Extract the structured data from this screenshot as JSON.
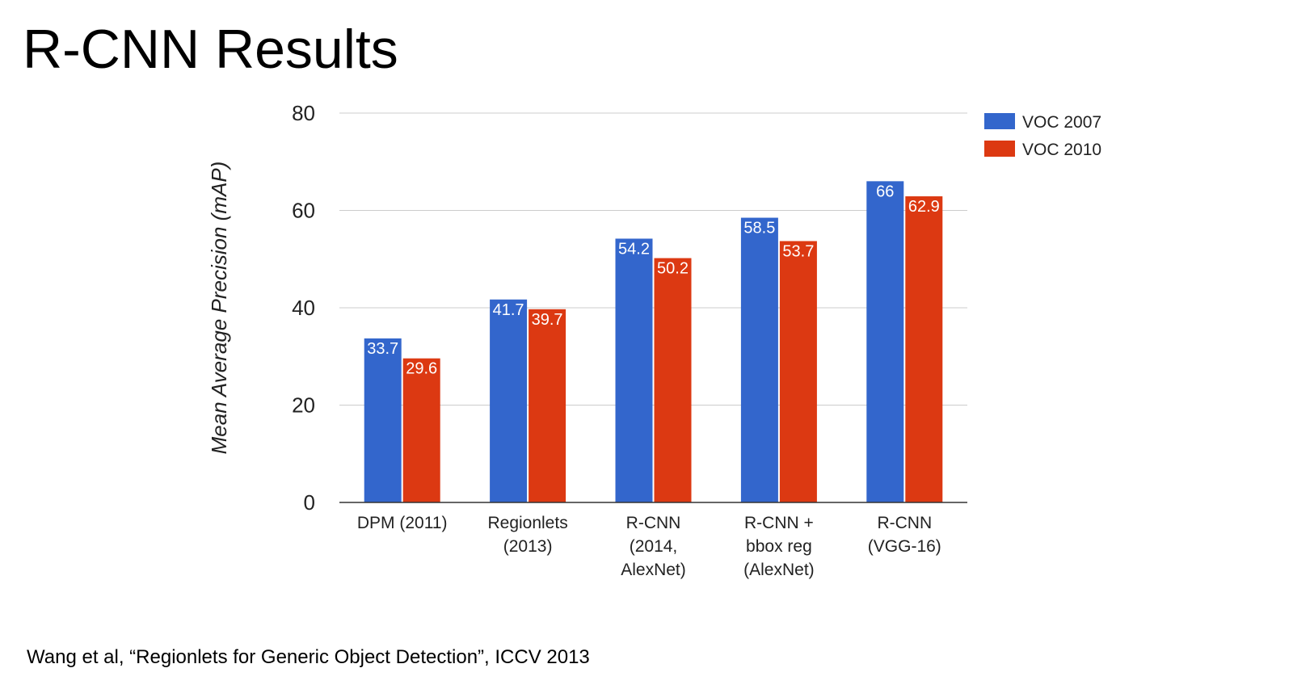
{
  "slide": {
    "title": "R-CNN Results",
    "citation": "Wang et al, “Regionlets for Generic Object Detection”, ICCV 2013"
  },
  "chart_data": {
    "type": "bar",
    "title": "",
    "xlabel": "",
    "ylabel": "Mean Average Precision (mAP)",
    "ylim": [
      0,
      80
    ],
    "yticks": [
      0,
      20,
      40,
      60,
      80
    ],
    "grid": true,
    "legend_position": "top-right",
    "categories": [
      [
        "DPM (2011)"
      ],
      [
        "Regionlets",
        "(2013)"
      ],
      [
        "R-CNN",
        "(2014,",
        "AlexNet)"
      ],
      [
        "R-CNN +",
        "bbox reg",
        "(AlexNet)"
      ],
      [
        "R-CNN",
        "(VGG-16)"
      ]
    ],
    "series": [
      {
        "name": "VOC 2007",
        "color": "#3366cc",
        "values": [
          33.7,
          41.7,
          54.2,
          58.5,
          66
        ],
        "labels": [
          "33.7",
          "41.7",
          "54.2",
          "58.5",
          "66"
        ]
      },
      {
        "name": "VOC 2010",
        "color": "#dc3912",
        "values": [
          29.6,
          39.7,
          50.2,
          53.7,
          62.9
        ],
        "labels": [
          "29.6",
          "39.7",
          "50.2",
          "53.7",
          "62.9"
        ]
      }
    ],
    "colors": {
      "grid": "#cccccc",
      "axis": "#333333",
      "text": "#222222",
      "bar_label": "#ffffff"
    }
  }
}
